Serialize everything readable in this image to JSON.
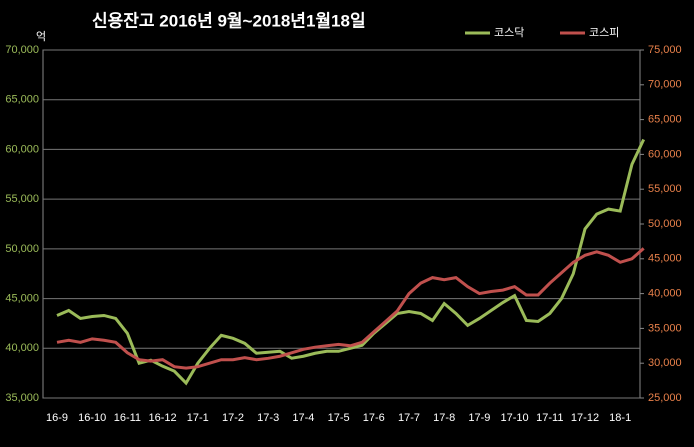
{
  "chart_data": {
    "type": "line",
    "title": "신용잔고  2016년 9월~2018년1월18일",
    "y_unit": "억",
    "categories": [
      "16-9",
      null,
      null,
      "16-10",
      null,
      null,
      "16-11",
      null,
      null,
      "16-12",
      null,
      null,
      "17-1",
      null,
      null,
      "17-2",
      null,
      null,
      "17-3",
      null,
      null,
      "17-4",
      null,
      null,
      "17-5",
      null,
      null,
      "17-6",
      null,
      null,
      "17-7",
      null,
      null,
      "17-8",
      null,
      null,
      "17-9",
      null,
      null,
      "17-10",
      null,
      null,
      "17-11",
      null,
      null,
      "17-12",
      null,
      null,
      "18-1",
      null,
      null
    ],
    "series": [
      {
        "name": "코스닥",
        "color": "#9bbb59",
        "axis": "y",
        "values": [
          43300,
          43800,
          43000,
          43200,
          43300,
          43000,
          41500,
          38500,
          38800,
          38200,
          37700,
          36500,
          38500,
          40000,
          41300,
          41000,
          40500,
          39500,
          39600,
          39700,
          39000,
          39200,
          39500,
          39700,
          39700,
          40000,
          40300,
          41500,
          42500,
          43500,
          43700,
          43500,
          42800,
          44500,
          43500,
          42300,
          43000,
          43800,
          44600,
          45300,
          42800,
          42700,
          43500,
          45000,
          47500,
          52000,
          53500,
          54000,
          53800,
          58500,
          61000
        ]
      },
      {
        "name": "코스피",
        "color": "#c0504d",
        "axis": "y2",
        "values": [
          33000,
          33300,
          33000,
          33500,
          33300,
          33000,
          31500,
          30500,
          30300,
          30500,
          29500,
          29300,
          29500,
          30000,
          30500,
          30500,
          30800,
          30500,
          30700,
          31000,
          31500,
          32000,
          32300,
          32500,
          32700,
          32500,
          33000,
          34500,
          36000,
          37500,
          40000,
          41500,
          42300,
          42000,
          42300,
          41000,
          40000,
          40300,
          40500,
          41000,
          39800,
          39800,
          41500,
          43000,
          44500,
          45500,
          46000,
          45500,
          44500,
          45000,
          46500
        ]
      }
    ],
    "ylim": [
      35000,
      70000
    ],
    "yticks": [
      {
        "value": 35000,
        "label": "35,000"
      },
      {
        "value": 40000,
        "label": "40,000"
      },
      {
        "value": 45000,
        "label": "45,000"
      },
      {
        "value": 50000,
        "label": "50,000"
      },
      {
        "value": 55000,
        "label": "55,000"
      },
      {
        "value": 60000,
        "label": "60,000"
      },
      {
        "value": 65000,
        "label": "65,000"
      },
      {
        "value": 70000,
        "label": "70,000"
      }
    ],
    "y2lim": [
      25000,
      75000
    ],
    "y2ticks": [
      {
        "value": 25000,
        "label": "25,000"
      },
      {
        "value": 30000,
        "label": "30,000"
      },
      {
        "value": 35000,
        "label": "35,000"
      },
      {
        "value": 40000,
        "label": "40,000"
      },
      {
        "value": 45000,
        "label": "45,000"
      },
      {
        "value": 50000,
        "label": "50,000"
      },
      {
        "value": 55000,
        "label": "55,000"
      },
      {
        "value": 60000,
        "label": "60,000"
      },
      {
        "value": 65000,
        "label": "65,000"
      },
      {
        "value": 70000,
        "label": "70,000"
      },
      {
        "value": 75000,
        "label": "75,000"
      }
    ],
    "ytick_color": "#9bbb59",
    "y2tick_color": "#e8804a",
    "grid": true
  }
}
